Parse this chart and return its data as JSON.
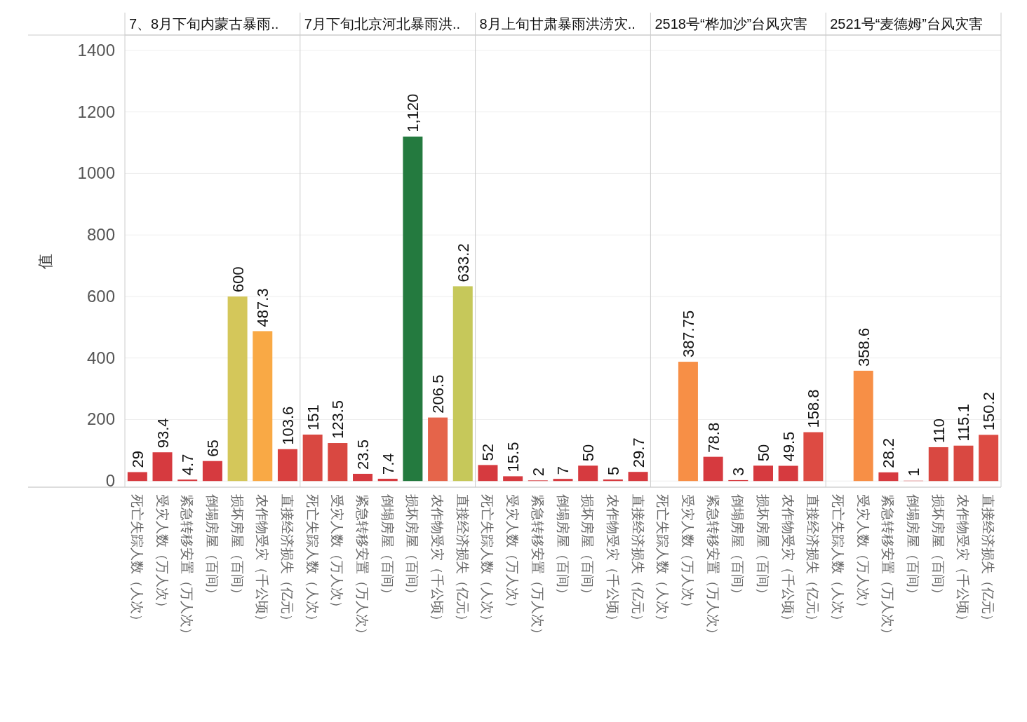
{
  "chart_data": [
    {
      "type": "bar",
      "title": "7、8月下旬内蒙古暴雨..",
      "ylabel": "值",
      "categories": [
        "死亡失踪人数（人次）",
        "受灾人数（万人次）",
        "紧急转移安置（万人次）",
        "倒塌房屋（百间）",
        "损坏房屋（百间）",
        "农作物受灾（千公顷）",
        "直接经济损失（亿元）"
      ],
      "values": [
        29,
        93.4,
        4.7,
        65,
        600,
        487.3,
        103.6
      ],
      "colors": [
        "#d63a3f",
        "#d63a3f",
        "#d63a3f",
        "#d63a3f",
        "#d4c75a",
        "#f9a945",
        "#d8403f"
      ],
      "value_labels": [
        "29",
        "93.4",
        "4.7",
        "65",
        "600",
        "487.3",
        "103.6"
      ],
      "ylim": [
        -20,
        1450
      ],
      "yticks": [
        0,
        200,
        400,
        600,
        800,
        1000,
        1200,
        1400
      ],
      "grid": "y"
    },
    {
      "type": "bar",
      "title": "7月下旬北京河北暴雨洪..",
      "categories": [
        "死亡失踪人数（人次）",
        "受灾人数（万人次）",
        "紧急转移安置（万人次）",
        "倒塌房屋（百间）",
        "损坏房屋（百间）",
        "农作物受灾（千公顷）",
        "直接经济损失（亿元）"
      ],
      "values": [
        151,
        123.5,
        23.5,
        7.4,
        1120,
        206.5,
        633.2
      ],
      "colors": [
        "#d94841",
        "#d94841",
        "#d63a3f",
        "#d63a3f",
        "#247a3f",
        "#e5644a",
        "#c6c85a"
      ],
      "value_labels": [
        "151",
        "123.5",
        "23.5",
        "7.4",
        "1,120",
        "206.5",
        "633.2"
      ],
      "ylim": [
        -20,
        1450
      ],
      "yticks": [
        0,
        200,
        400,
        600,
        800,
        1000,
        1200,
        1400
      ],
      "grid": "y",
      "tick_labels": "x"
    },
    {
      "type": "bar",
      "title": "8月上旬甘肃暴雨洪涝灾..",
      "categories": [
        "死亡失踪人数（人次）",
        "受灾人数（万人次）",
        "紧急转移安置（万人次）",
        "倒塌房屋（百间）",
        "损坏房屋（百间）",
        "农作物受灾（千公顷）",
        "直接经济损失（亿元）"
      ],
      "values": [
        52,
        15.5,
        2,
        7,
        50,
        5,
        29.7
      ],
      "colors": [
        "#d63a3f",
        "#d63a3f",
        "#d63a3f",
        "#d63a3f",
        "#d63a3f",
        "#d63a3f",
        "#d63a3f"
      ],
      "value_labels": [
        "52",
        "15.5",
        "2",
        "7",
        "50",
        "5",
        "29.7"
      ],
      "ylim": [
        -20,
        1450
      ],
      "yticks": [
        0,
        200,
        400,
        600,
        800,
        1000,
        1200,
        1400
      ],
      "grid": "y",
      "tick_labels": "x"
    },
    {
      "type": "bar",
      "title": "2518号“桦加沙”台风灾害",
      "categories": [
        "死亡失踪人数（人次）",
        "受灾人数（万人次）",
        "紧急转移安置（万人次）",
        "倒塌房屋（百间）",
        "损坏房屋（百间）",
        "农作物受灾（千公顷）",
        "直接经济损失（亿元）"
      ],
      "values": [
        null,
        387.75,
        78.8,
        3,
        50,
        49.5,
        158.8
      ],
      "colors": [
        null,
        "#f78f46",
        "#d63a3f",
        "#d63a3f",
        "#d63a3f",
        "#d63a3f",
        "#dd4b43"
      ],
      "value_labels": [
        null,
        "387.75",
        "78.8",
        "3",
        "50",
        "49.5",
        "158.8"
      ],
      "ylim": [
        -20,
        1450
      ],
      "yticks": [
        0,
        200,
        400,
        600,
        800,
        1000,
        1200,
        1400
      ],
      "grid": "y",
      "tick_labels": "x"
    },
    {
      "type": "bar",
      "title": "2521号“麦德姆”台风灾害",
      "categories": [
        "死亡失踪人数（人次）",
        "受灾人数（万人次）",
        "紧急转移安置（万人次）",
        "倒塌房屋（百间）",
        "损坏房屋（百间）",
        "农作物受灾（千公顷）",
        "直接经济损失（亿元）"
      ],
      "values": [
        null,
        358.6,
        28.2,
        1,
        110,
        115.1,
        150.2
      ],
      "colors": [
        null,
        "#f78f46",
        "#d63a3f",
        "#d63a3f",
        "#d94841",
        "#d94841",
        "#dd4b43"
      ],
      "value_labels": [
        null,
        "358.6",
        "28.2",
        "1",
        "110",
        "115.1",
        "150.2"
      ],
      "ylim": [
        -20,
        1450
      ],
      "yticks": [
        0,
        200,
        400,
        600,
        800,
        1000,
        1200,
        1400
      ],
      "grid": "y",
      "tick_labels": "x"
    }
  ]
}
